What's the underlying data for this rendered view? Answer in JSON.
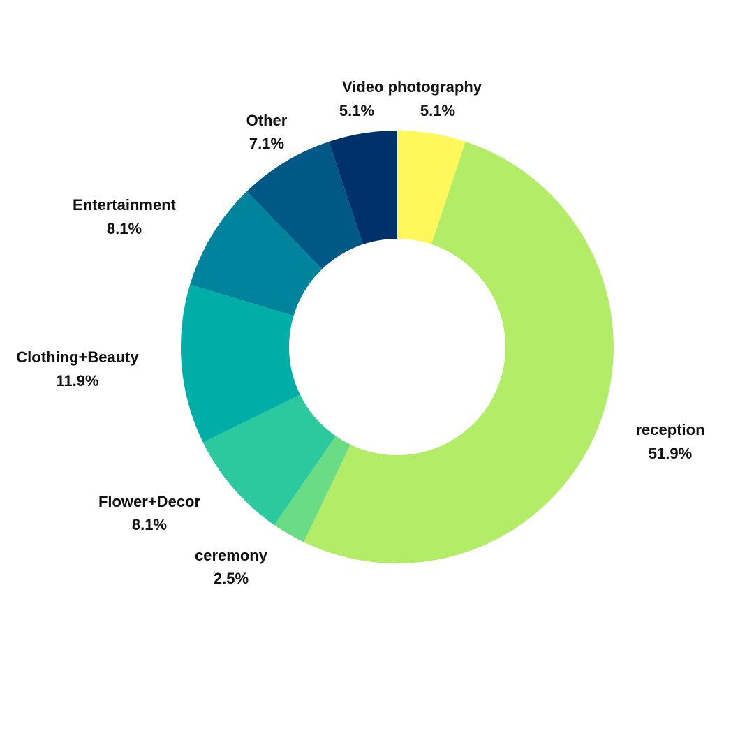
{
  "chart_data": {
    "type": "pie",
    "variant": "donut",
    "start_angle_position": "top, clockwise",
    "legend": "none",
    "slices": [
      {
        "label": "Video photography",
        "value": 5.1,
        "value_label": "5.1%",
        "color": "#FFF75B"
      },
      {
        "label": "reception",
        "value": 51.9,
        "value_label": "51.9%",
        "color": "#B3ED68"
      },
      {
        "label": "ceremony",
        "value": 2.5,
        "value_label": "2.5%",
        "color": "#6ADC86"
      },
      {
        "label": "Flower+Decor",
        "value": 8.1,
        "value_label": "8.1%",
        "color": "#2DC99E"
      },
      {
        "label": "Clothing+Beauty",
        "value": 11.9,
        "value_label": "11.9%",
        "color": "#00AEA8"
      },
      {
        "label": "Entertainment",
        "value": 8.1,
        "value_label": "8.1%",
        "color": "#00839C"
      },
      {
        "label": "Other",
        "value": 7.1,
        "value_label": "7.1%",
        "color": "#005887"
      },
      {
        "label": "",
        "value": 5.1,
        "value_label": "5.1%",
        "color": "#00316A"
      }
    ]
  }
}
